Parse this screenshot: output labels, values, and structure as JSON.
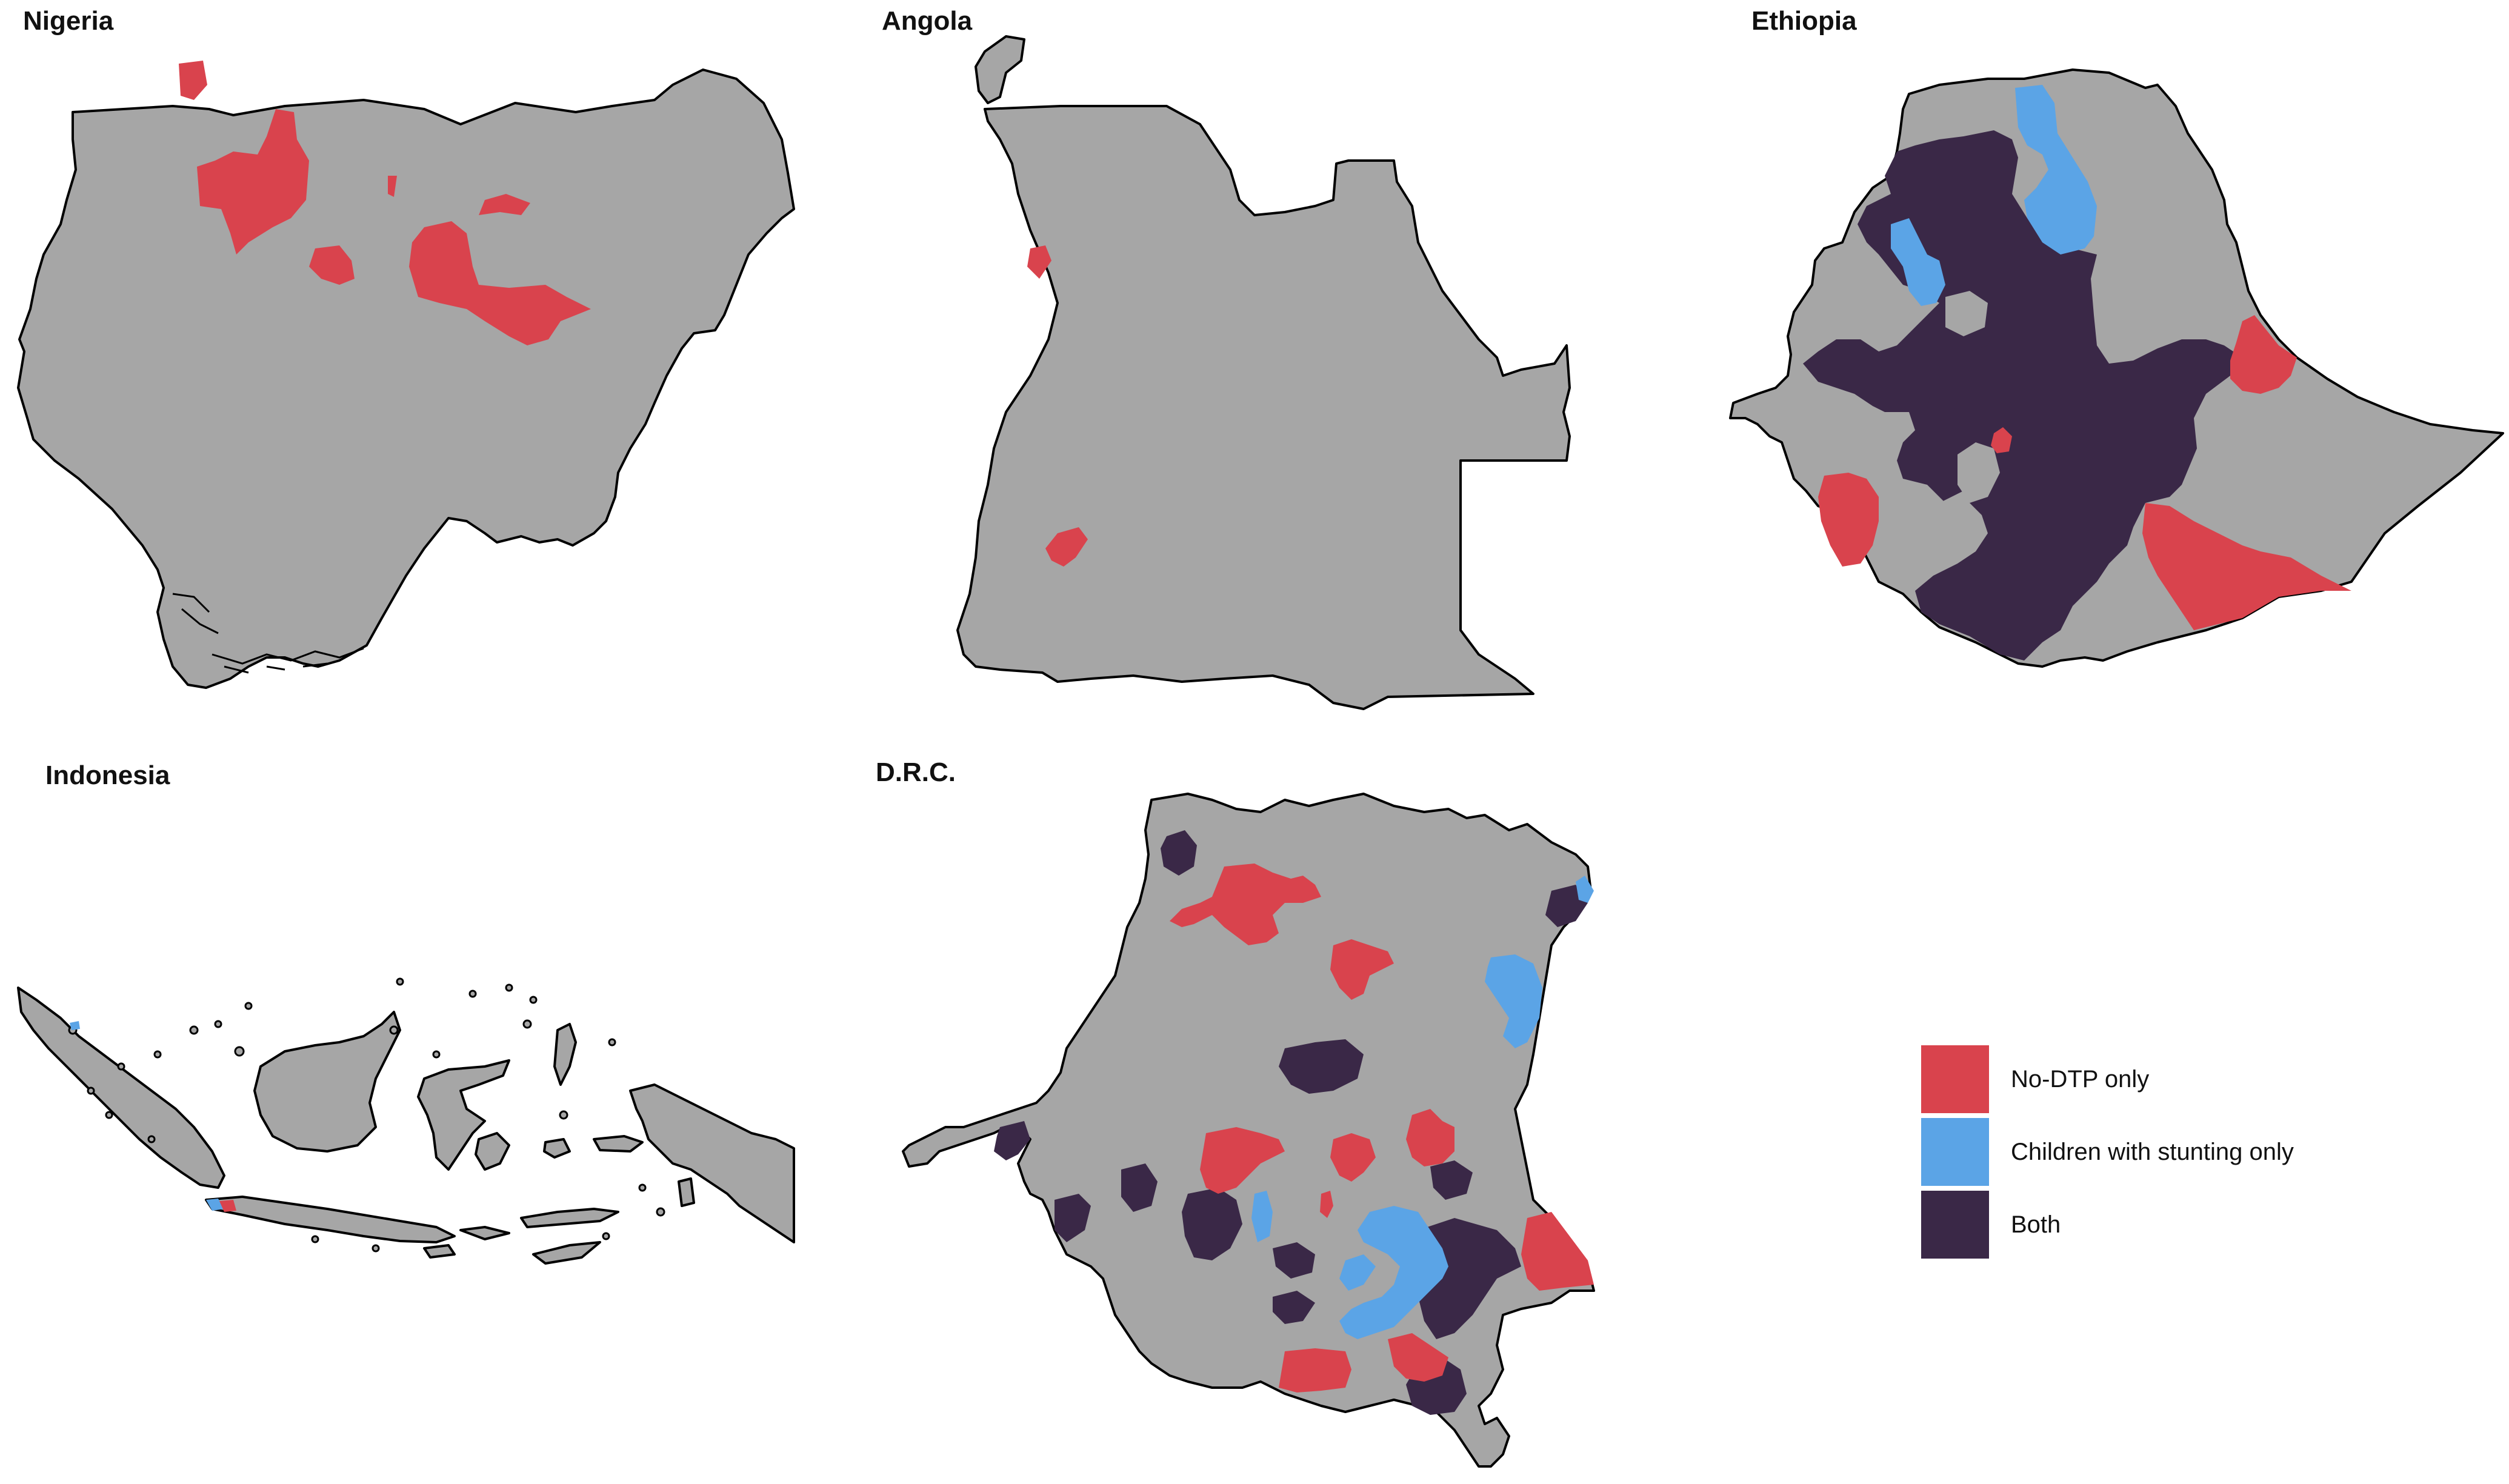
{
  "panels": {
    "nigeria": {
      "title": "Nigeria"
    },
    "angola": {
      "title": "Angola"
    },
    "ethiopia": {
      "title": "Ethiopia"
    },
    "indonesia": {
      "title": "Indonesia"
    },
    "drc": {
      "title": "D.R.C."
    }
  },
  "legend": {
    "items": [
      {
        "label": "No-DTP only",
        "color": "#d9434d"
      },
      {
        "label": "Children with stunting only",
        "color": "#5ba4e6"
      },
      {
        "label": "Both",
        "color": "#3a2847"
      }
    ]
  },
  "colors": {
    "land": "#a6a6a6",
    "no_dtp": "#d9434d",
    "stunting": "#5ba4e6",
    "both": "#3a2847"
  }
}
